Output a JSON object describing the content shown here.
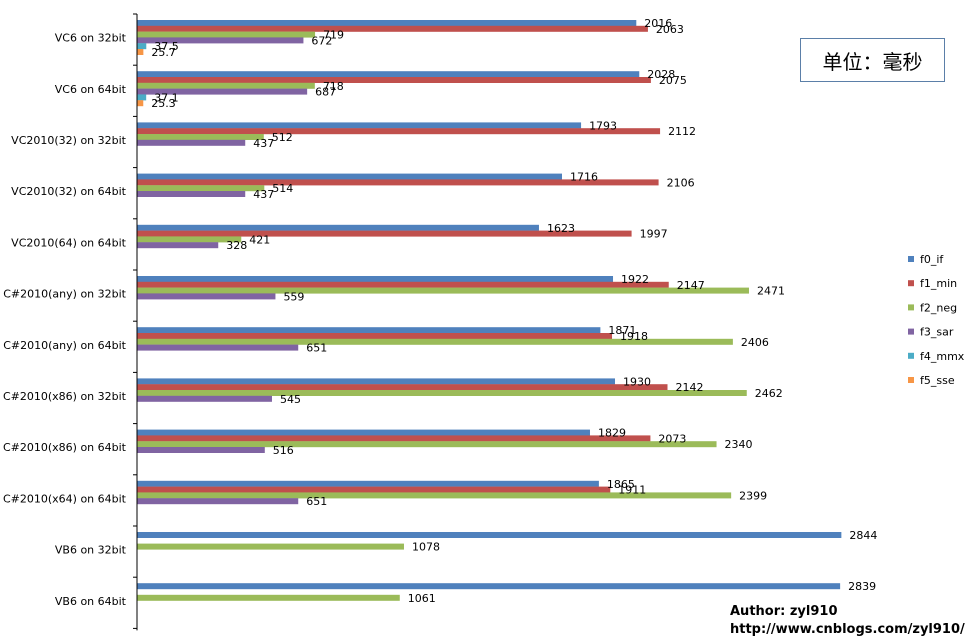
{
  "unit_note": "单位：毫秒",
  "author": "Author: zyl910",
  "url": "http://www.cnblogs.com/zyl910/",
  "chart_data": {
    "type": "bar",
    "orientation": "horizontal",
    "xlim": [
      0,
      3000
    ],
    "grid": false,
    "legend_position": "right",
    "categories": [
      "VC6 on 32bit",
      "VC6 on 64bit",
      "VC2010(32) on 32bit",
      "VC2010(32) on 64bit",
      "VC2010(64) on 64bit",
      "C#2010(any) on 32bit",
      "C#2010(any) on 64bit",
      "C#2010(x86) on 32bit",
      "C#2010(x86) on 64bit",
      "C#2010(x64) on 64bit",
      "VB6 on 32bit",
      "VB6 on 64bit"
    ],
    "series": [
      {
        "name": "f0_if",
        "color": "#4f81bd",
        "values": [
          2016,
          2028,
          1793,
          1716,
          1623,
          1922,
          1871,
          1930,
          1829,
          1865,
          2844,
          2839
        ]
      },
      {
        "name": "f1_min",
        "color": "#c0504d",
        "values": [
          2063,
          2075,
          2112,
          2106,
          1997,
          2147,
          1918,
          2142,
          2073,
          1911,
          null,
          null
        ]
      },
      {
        "name": "f2_neg",
        "color": "#9bbb59",
        "values": [
          719,
          718,
          512,
          514,
          421,
          2471,
          2406,
          2462,
          2340,
          2399,
          1078,
          1061
        ]
      },
      {
        "name": "f3_sar",
        "color": "#8064a2",
        "values": [
          672,
          687,
          437,
          437,
          328,
          559,
          651,
          545,
          516,
          651,
          null,
          null
        ]
      },
      {
        "name": "f4_mmx",
        "color": "#4bacc6",
        "values": [
          37.5,
          37.1,
          null,
          null,
          null,
          null,
          null,
          null,
          null,
          null,
          null,
          null
        ]
      },
      {
        "name": "f5_sse",
        "color": "#f79646",
        "values": [
          25.7,
          25.3,
          null,
          null,
          null,
          null,
          null,
          null,
          null,
          null,
          null,
          null
        ]
      }
    ]
  }
}
